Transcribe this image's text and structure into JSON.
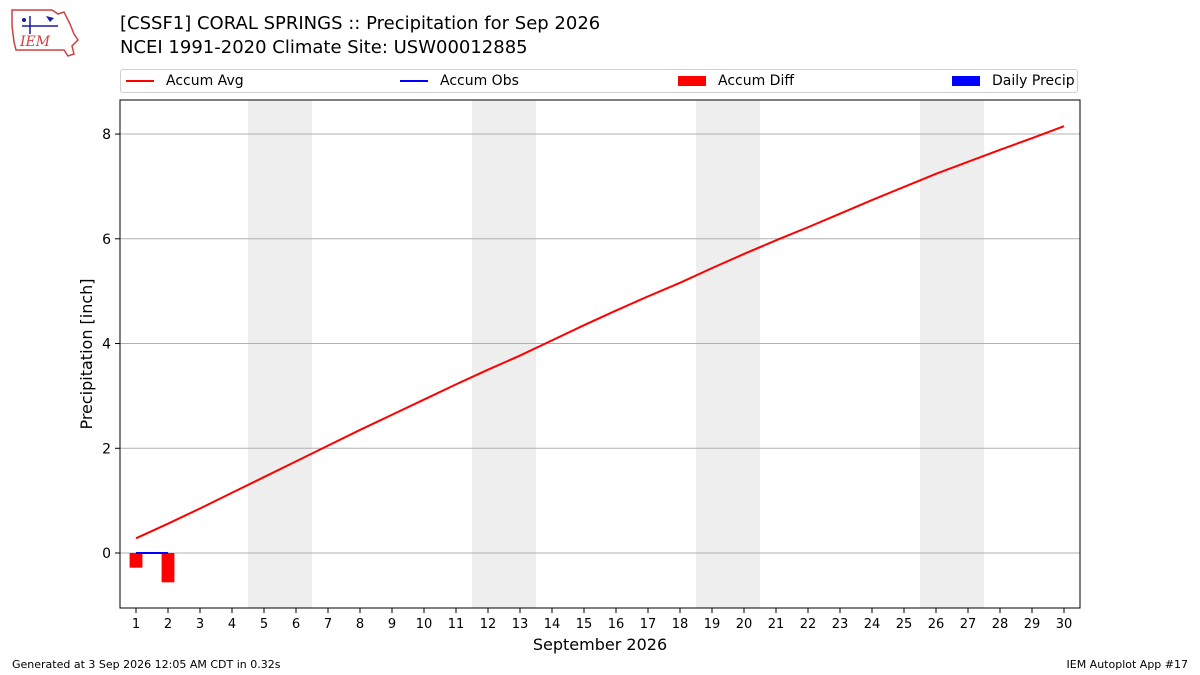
{
  "header": {
    "logo_text": "IEM",
    "title": "[CSSF1] CORAL SPRINGS :: Precipitation for Sep 2026",
    "subtitle": "NCEI 1991-2020 Climate Site: USW00012885"
  },
  "legend": {
    "items": [
      {
        "label": "Accum Avg",
        "kind": "line",
        "color": "#ff0000"
      },
      {
        "label": "Accum Obs",
        "kind": "line",
        "color": "#0000ff"
      },
      {
        "label": "Accum Diff",
        "kind": "box",
        "color": "#ff0000"
      },
      {
        "label": "Daily Precip",
        "kind": "box",
        "color": "#0000ff"
      }
    ]
  },
  "footer": {
    "left": "Generated at 3 Sep 2026 12:05 AM CDT in 0.32s",
    "right": "IEM Autoplot App #17"
  },
  "chart_data": {
    "type": "line",
    "xlabel": "September 2026",
    "ylabel": "Precipitation [inch]",
    "xlim": [
      0.5,
      30.5
    ],
    "ylim": [
      -1.05,
      8.65
    ],
    "xticks": [
      1,
      2,
      3,
      4,
      5,
      6,
      7,
      8,
      9,
      10,
      11,
      12,
      13,
      14,
      15,
      16,
      17,
      18,
      19,
      20,
      21,
      22,
      23,
      24,
      25,
      26,
      27,
      28,
      29,
      30
    ],
    "yticks": [
      0,
      2,
      4,
      6,
      8
    ],
    "grid": "y",
    "legend_position": "top",
    "weekend_shading": [
      [
        4.5,
        6.5
      ],
      [
        11.5,
        13.5
      ],
      [
        18.5,
        20.5
      ],
      [
        25.5,
        27.5
      ]
    ],
    "accum_avg": {
      "x": [
        1,
        2,
        3,
        4,
        5,
        6,
        7,
        8,
        9,
        10,
        11,
        12,
        13,
        14,
        15,
        16,
        17,
        18,
        19,
        20,
        21,
        22,
        23,
        24,
        25,
        26,
        27,
        28,
        29,
        30
      ],
      "y": [
        0.28,
        0.56,
        0.85,
        1.15,
        1.45,
        1.75,
        2.05,
        2.35,
        2.64,
        2.93,
        3.22,
        3.5,
        3.77,
        4.06,
        4.35,
        4.63,
        4.9,
        5.16,
        5.44,
        5.71,
        5.97,
        6.22,
        6.48,
        6.74,
        6.99,
        7.24,
        7.47,
        7.7,
        7.92,
        8.15
      ]
    },
    "accum_obs": {
      "x": [
        1,
        2
      ],
      "y": [
        0.0,
        0.0
      ]
    },
    "accum_diff": {
      "x": [
        1,
        2
      ],
      "y": [
        -0.28,
        -0.56
      ]
    },
    "daily_precip": {
      "x": [
        1,
        2
      ],
      "y": [
        0.0,
        0.0
      ]
    }
  }
}
